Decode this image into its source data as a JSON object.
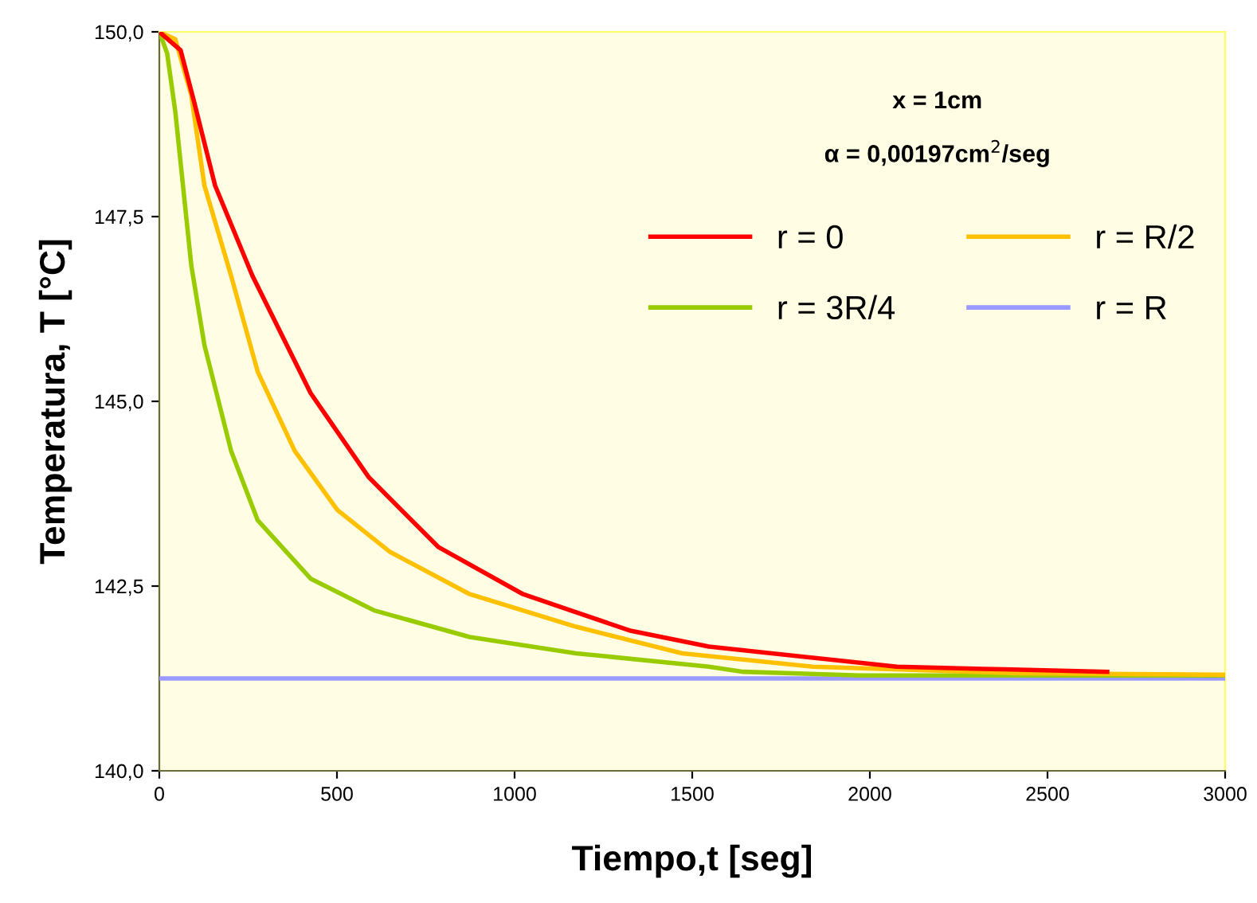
{
  "chart_data": {
    "type": "line",
    "xlabel": "Tiempo,t [seg]",
    "ylabel": "Temperatura, T [°C]",
    "annotations": [
      "x = 1cm",
      "α = 0,00197cm$^{2}$/seg"
    ],
    "xlim": [
      0,
      3000
    ],
    "xticks": [
      0,
      500,
      1000,
      1500,
      2000,
      2500,
      3000
    ],
    "ylim": [
      140,
      150
    ],
    "yticks": [
      {
        "value": 140,
        "label": "140,0"
      },
      {
        "value": 142.5,
        "label": "142,5"
      },
      {
        "value": 145,
        "label": "145,0"
      },
      {
        "value": 147.5,
        "label": "147,5"
      },
      {
        "value": 150,
        "label": "150,0"
      }
    ],
    "grid": false,
    "legend": "top right",
    "marker": "none",
    "line_style": "solid",
    "series": [
      {
        "name": "r = 0",
        "color": "#ff0000",
        "x": [
          0,
          60,
          97,
          157,
          262,
          426,
          590,
          785,
          1024,
          1323,
          1547,
          2076,
          2318,
          2668
        ],
        "values": [
          150,
          149.75,
          149.07,
          147.92,
          146.7,
          145.11,
          143.97,
          143.03,
          142.39,
          141.9,
          141.68,
          141.41,
          141.38,
          141.34
        ]
      },
      {
        "name": "r = R/2",
        "color": "#ffc000",
        "x": [
          0,
          45,
          90,
          127,
          202,
          277,
          381,
          501,
          650,
          874,
          1173,
          1472,
          1839,
          2422,
          3000
        ],
        "values": [
          150,
          149.9,
          149.14,
          147.92,
          146.7,
          145.4,
          144.33,
          143.53,
          142.96,
          142.39,
          141.95,
          141.59,
          141.41,
          141.32,
          141.3
        ]
      },
      {
        "name": "r = 3R/4",
        "color": "#99cc00",
        "x": [
          0,
          22,
          45,
          90,
          127,
          202,
          277,
          426,
          605,
          874,
          1173,
          1547,
          1644,
          1973,
          3000
        ],
        "values": [
          150,
          149.71,
          148.92,
          146.84,
          145.76,
          144.33,
          143.39,
          142.6,
          142.17,
          141.81,
          141.59,
          141.41,
          141.34,
          141.29,
          141.29
        ]
      },
      {
        "name": "r = R",
        "color": "#9999ff",
        "x": [
          0,
          3000
        ],
        "values": [
          141.25,
          141.25
        ]
      }
    ]
  }
}
